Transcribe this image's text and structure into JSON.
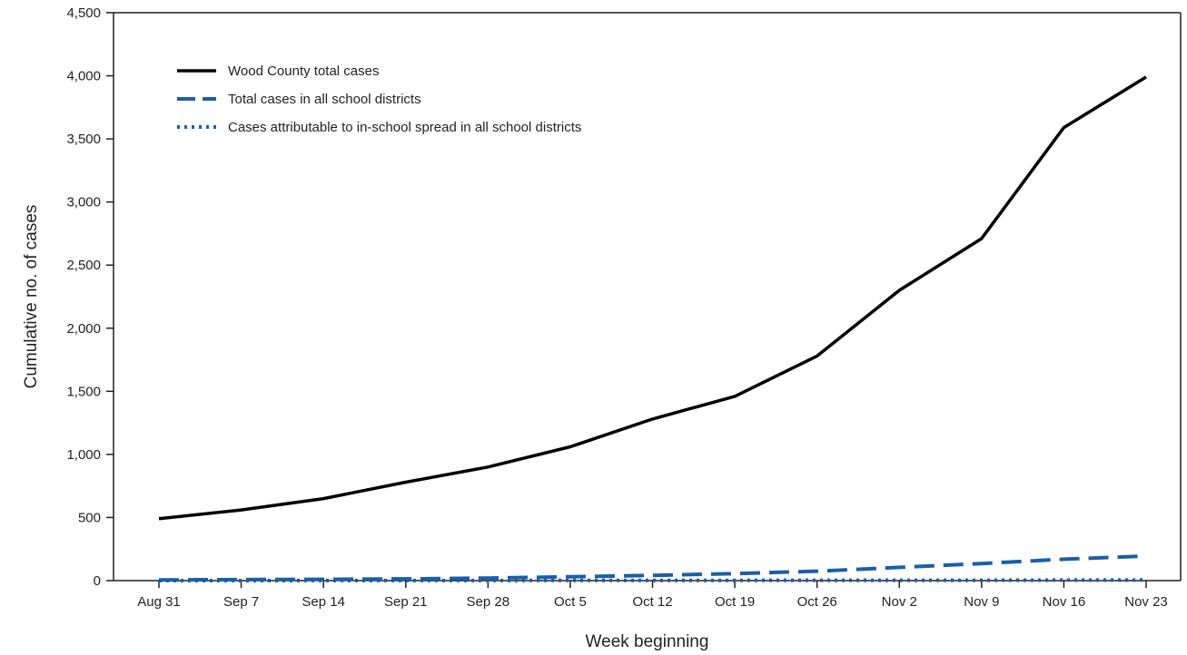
{
  "chart_data": {
    "type": "line",
    "title": "",
    "xlabel": "Week beginning",
    "ylabel": "Cumulative no. of cases",
    "categories": [
      "Aug 31",
      "Sep 7",
      "Sep 14",
      "Sep 21",
      "Sep 28",
      "Oct 5",
      "Oct 12",
      "Oct 19",
      "Oct 26",
      "Nov 2",
      "Nov 9",
      "Nov 16",
      "Nov 23"
    ],
    "ylim": [
      0,
      4500
    ],
    "yticks": [
      0,
      500,
      1000,
      1500,
      2000,
      2500,
      3000,
      3500,
      4000,
      4500
    ],
    "ytick_labels": [
      "0",
      "500",
      "1,000",
      "1,500",
      "2,000",
      "2,500",
      "3,000",
      "3,500",
      "4,000",
      "4,500"
    ],
    "grid": false,
    "legend_position": "top-left",
    "series": [
      {
        "name": "Wood County total cases",
        "style": "solid",
        "color": "#000000",
        "values": [
          490,
          560,
          650,
          780,
          900,
          1060,
          1280,
          1460,
          1780,
          2300,
          2710,
          3590,
          3990
        ]
      },
      {
        "name": "Total cases in all school districts",
        "style": "dashed",
        "color": "#1a5fa8",
        "values": [
          5,
          8,
          10,
          14,
          20,
          30,
          42,
          55,
          75,
          105,
          135,
          170,
          195
        ]
      },
      {
        "name": "Cases attributable to in-school spread in all school districts",
        "style": "dotted",
        "color": "#1a5fa8",
        "values": [
          0,
          0,
          1,
          1,
          1,
          2,
          2,
          2,
          3,
          3,
          3,
          4,
          5
        ]
      }
    ]
  }
}
